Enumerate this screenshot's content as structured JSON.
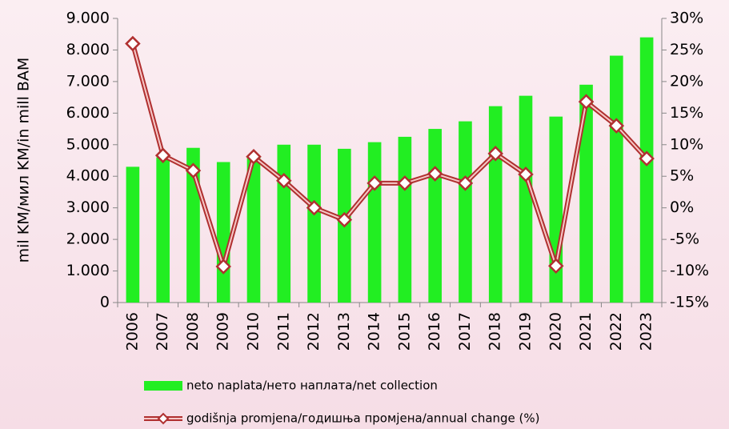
{
  "chart_data": {
    "type": "bar_line",
    "y_label": "mil KM/мил KM/in mill BAM",
    "categories": [
      "2006",
      "2007",
      "2008",
      "2009",
      "2010",
      "2011",
      "2012",
      "2013",
      "2014",
      "2015",
      "2016",
      "2017",
      "2018",
      "2019",
      "2020",
      "2021",
      "2022",
      "2023"
    ],
    "series": [
      {
        "name": "neto naplata/нето наплата/net collection",
        "color": "#22ee22",
        "type": "bar",
        "values": [
          4300,
          4600,
          4900,
          4450,
          4600,
          5000,
          5000,
          4870,
          5080,
          5250,
          5500,
          5740,
          6220,
          6550,
          5890,
          6900,
          7820,
          8400
        ]
      },
      {
        "name": "godišnja promjena/годишња промјена/annual change (%)",
        "color": "#b03030",
        "type": "line",
        "axis": "y2",
        "values": [
          26,
          8.3,
          5.9,
          -9.3,
          8.1,
          4.3,
          0,
          -1.9,
          3.9,
          3.9,
          5.4,
          3.9,
          8.6,
          5.3,
          -9.2,
          16.8,
          13.0,
          7.8
        ]
      }
    ],
    "ylim": [
      0,
      9000
    ],
    "yticks": [
      {
        "value": 0,
        "label": "0"
      },
      {
        "value": 1000,
        "label": "1.000"
      },
      {
        "value": 2000,
        "label": "2.000"
      },
      {
        "value": 3000,
        "label": "3.000"
      },
      {
        "value": 4000,
        "label": "4.000"
      },
      {
        "value": 5000,
        "label": "5.000"
      },
      {
        "value": 6000,
        "label": "6.000"
      },
      {
        "value": 7000,
        "label": "7.000"
      },
      {
        "value": 8000,
        "label": "8.000"
      },
      {
        "value": 9000,
        "label": "9.000"
      }
    ],
    "y2lim": [
      -15,
      30
    ],
    "y2ticks": [
      {
        "value": -15,
        "label": "-15%"
      },
      {
        "value": -10,
        "label": "-10%"
      },
      {
        "value": -5,
        "label": "-5%"
      },
      {
        "value": 0,
        "label": "0%"
      },
      {
        "value": 5,
        "label": "5%"
      },
      {
        "value": 10,
        "label": "10%"
      },
      {
        "value": 15,
        "label": "15%"
      },
      {
        "value": 20,
        "label": "20%"
      },
      {
        "value": 25,
        "label": "25%"
      },
      {
        "value": 30,
        "label": "30%"
      }
    ]
  }
}
